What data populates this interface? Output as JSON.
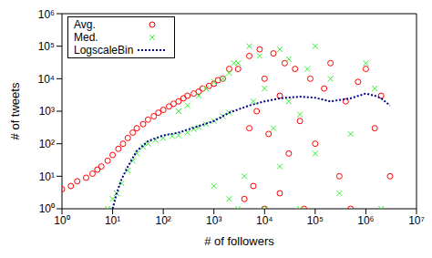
{
  "chart_data": {
    "type": "scatter",
    "xlabel": "# of followers",
    "ylabel": "# of tweets",
    "log": true,
    "grid": false,
    "legend": "upper left",
    "xlim": [
      1,
      10000000
    ],
    "ylim": [
      1,
      1000000
    ],
    "xticks": [
      {
        "value": 1,
        "label": "10⁰"
      },
      {
        "value": 10,
        "label": "10¹"
      },
      {
        "value": 100,
        "label": "10²"
      },
      {
        "value": 1000,
        "label": "10³"
      },
      {
        "value": 10000,
        "label": "10⁴"
      },
      {
        "value": 100000,
        "label": "10⁵"
      },
      {
        "value": 1000000,
        "label": "10⁶"
      },
      {
        "value": 10000000,
        "label": "10⁷"
      }
    ],
    "yticks": [
      {
        "value": 1,
        "label": "10⁰"
      },
      {
        "value": 10,
        "label": "10¹"
      },
      {
        "value": 100,
        "label": "10²"
      },
      {
        "value": 1000,
        "label": "10³"
      },
      {
        "value": 10000,
        "label": "10⁴"
      },
      {
        "value": 100000,
        "label": "10⁵"
      },
      {
        "value": 1000000,
        "label": "10⁶"
      }
    ],
    "series": [
      {
        "name": "Avg.",
        "type": "scatter",
        "marker": "circle",
        "color": "#ff0000",
        "x": [
          1,
          1.5,
          2,
          3,
          4,
          5,
          6,
          8,
          10,
          13,
          16,
          20,
          25,
          30,
          40,
          50,
          65,
          80,
          100,
          130,
          160,
          200,
          250,
          300,
          400,
          500,
          600,
          800,
          1000,
          1200,
          1500,
          2000,
          3000,
          4000,
          5000,
          5000,
          6000,
          7000,
          8000,
          10000,
          10000,
          12000,
          15000,
          20000,
          20000,
          25000,
          30000,
          40000,
          50000,
          60000,
          80000,
          100000,
          150000,
          200000,
          300000,
          400000,
          500000,
          700000,
          1000000,
          1500000,
          2000000,
          3000000
        ],
        "values": [
          4,
          5,
          7,
          9,
          12,
          16,
          20,
          30,
          45,
          70,
          100,
          150,
          220,
          300,
          400,
          550,
          700,
          900,
          1100,
          1400,
          1700,
          2000,
          2500,
          3000,
          3500,
          4000,
          5000,
          6000,
          7000,
          9000,
          10000,
          20000,
          20000,
          2,
          50000,
          300,
          5,
          1000,
          80000,
          1,
          10000,
          200,
          60000,
          3,
          3000,
          30000,
          50,
          20000,
          500,
          1,
          10000,
          100,
          5000,
          30000,
          10,
          2000,
          1,
          8000,
          20000,
          300,
          3000,
          10
        ]
      },
      {
        "name": "Med.",
        "type": "scatter",
        "marker": "x",
        "color": "#33ee33",
        "x": [
          8,
          10,
          12,
          15,
          20,
          25,
          30,
          40,
          50,
          70,
          100,
          150,
          200,
          300,
          400,
          500,
          700,
          1000,
          1500,
          2000,
          200,
          300,
          500,
          700,
          1000,
          1500,
          2000,
          2500,
          1000,
          2000,
          3000,
          3000,
          4000,
          5000,
          6000,
          8000,
          10000,
          10000,
          15000,
          20000,
          20000,
          30000,
          30000,
          50000,
          50000,
          70000,
          100000,
          100000,
          200000,
          300000,
          500000,
          1000000,
          1500000,
          2000000
        ],
        "values": [
          1,
          2,
          3,
          6,
          15,
          30,
          50,
          80,
          100,
          130,
          150,
          170,
          180,
          220,
          280,
          320,
          400,
          500,
          700,
          900,
          1000,
          1500,
          3000,
          5000,
          8000,
          10000,
          15000,
          30000,
          5,
          2,
          1,
          30000,
          10,
          100000,
          2000,
          50000,
          1,
          5000,
          300,
          80000,
          20,
          2000,
          40000,
          1,
          800,
          20000,
          100000,
          50,
          10000,
          3,
          200,
          30000,
          5000,
          1
        ]
      },
      {
        "name": "LogscaleBin",
        "type": "line",
        "line_style": "dotted",
        "color": "#00008b",
        "x": [
          10,
          12,
          15,
          20,
          30,
          50,
          100,
          200,
          500,
          1000,
          2000,
          5000,
          10000,
          20000,
          50000,
          100000,
          200000,
          500000,
          1000000,
          1500000,
          2000000,
          3000000
        ],
        "values": [
          1,
          3,
          8,
          20,
          60,
          120,
          180,
          220,
          350,
          500,
          900,
          1500,
          2000,
          2500,
          2800,
          2600,
          2000,
          2500,
          3500,
          3000,
          2500,
          1500
        ]
      }
    ]
  }
}
